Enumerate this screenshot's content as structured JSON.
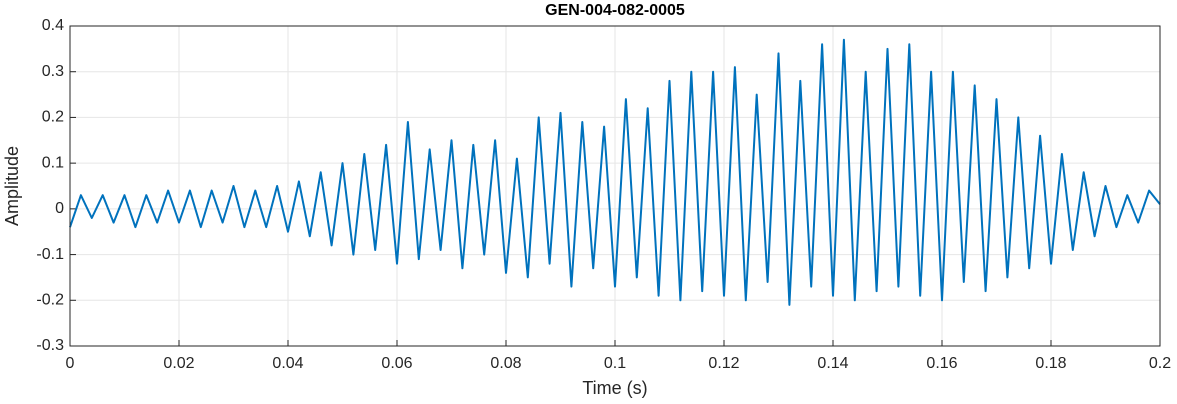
{
  "chart_data": {
    "type": "line",
    "title": "GEN-004-082-0005",
    "xlabel": "Time (s)",
    "ylabel": "Amplitude",
    "x": [
      0,
      0.002,
      0.004,
      0.006,
      0.008,
      0.01,
      0.012,
      0.014,
      0.016,
      0.018,
      0.02,
      0.022,
      0.024,
      0.026,
      0.028,
      0.03,
      0.032,
      0.034,
      0.036,
      0.038,
      0.04,
      0.042,
      0.044,
      0.046,
      0.048,
      0.05,
      0.052,
      0.054,
      0.056,
      0.058,
      0.06,
      0.062,
      0.064,
      0.066,
      0.068,
      0.07,
      0.072,
      0.074,
      0.076,
      0.078,
      0.08,
      0.082,
      0.084,
      0.086,
      0.088,
      0.09,
      0.092,
      0.094,
      0.096,
      0.098,
      0.1,
      0.102,
      0.104,
      0.106,
      0.108,
      0.11,
      0.112,
      0.114,
      0.116,
      0.118,
      0.12,
      0.122,
      0.124,
      0.126,
      0.128,
      0.13,
      0.132,
      0.134,
      0.136,
      0.138,
      0.14,
      0.142,
      0.144,
      0.146,
      0.148,
      0.15,
      0.152,
      0.154,
      0.156,
      0.158,
      0.16,
      0.162,
      0.164,
      0.166,
      0.168,
      0.17,
      0.172,
      0.174,
      0.176,
      0.178,
      0.18,
      0.182,
      0.184,
      0.186,
      0.188,
      0.19,
      0.192,
      0.194,
      0.196,
      0.198,
      0.2
    ],
    "series": [
      {
        "color": "#0072bd",
        "values": [
          -0.04,
          0.03,
          -0.02,
          0.03,
          -0.03,
          0.03,
          -0.04,
          0.03,
          -0.03,
          0.04,
          -0.03,
          0.04,
          -0.04,
          0.04,
          -0.03,
          0.05,
          -0.04,
          0.04,
          -0.04,
          0.05,
          -0.05,
          0.06,
          -0.06,
          0.08,
          -0.08,
          0.1,
          -0.1,
          0.12,
          -0.09,
          0.14,
          -0.12,
          0.19,
          -0.11,
          0.13,
          -0.09,
          0.15,
          -0.13,
          0.14,
          -0.1,
          0.15,
          -0.14,
          0.11,
          -0.15,
          0.2,
          -0.12,
          0.21,
          -0.17,
          0.19,
          -0.13,
          0.18,
          -0.17,
          0.24,
          -0.15,
          0.22,
          -0.19,
          0.28,
          -0.2,
          0.3,
          -0.18,
          0.3,
          -0.19,
          0.31,
          -0.2,
          0.25,
          -0.16,
          0.34,
          -0.21,
          0.28,
          -0.17,
          0.36,
          -0.19,
          0.37,
          -0.2,
          0.3,
          -0.18,
          0.35,
          -0.17,
          0.36,
          -0.19,
          0.3,
          -0.2,
          0.3,
          -0.16,
          0.27,
          -0.18,
          0.24,
          -0.15,
          0.2,
          -0.13,
          0.16,
          -0.12,
          0.12,
          -0.09,
          0.08,
          -0.06,
          0.05,
          -0.04,
          0.03,
          -0.03,
          0.04,
          0.01
        ]
      }
    ],
    "xlim": [
      0,
      0.2
    ],
    "xticks": [
      0,
      0.02,
      0.04,
      0.06,
      0.08,
      0.1,
      0.12,
      0.14,
      0.16,
      0.18,
      0.2
    ],
    "ylim": [
      -0.3,
      0.4
    ],
    "yticks": [
      -0.3,
      -0.2,
      -0.1,
      0,
      0.1,
      0.2,
      0.3,
      0.4
    ],
    "grid": true
  }
}
